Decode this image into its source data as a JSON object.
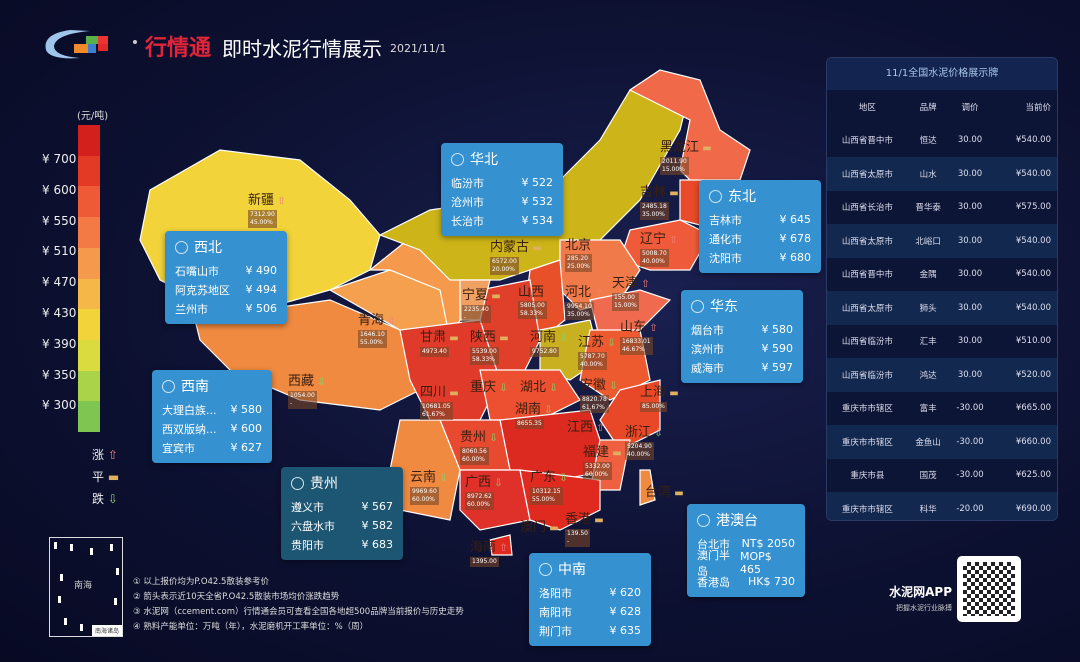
{
  "header": {
    "brand": "行情通",
    "title": "即时水泥行情展示",
    "date": "2021/11/1"
  },
  "legend": {
    "unit": "(元/吨)",
    "ticks": [
      "¥ 700",
      "¥ 600",
      "¥ 550",
      "¥ 510",
      "¥ 470",
      "¥ 430",
      "¥ 390",
      "¥ 350",
      "¥ 300"
    ],
    "colors": [
      "#d3201c",
      "#e33a26",
      "#ee5a36",
      "#f37a44",
      "#f59a4c",
      "#f5b848",
      "#f2d33a",
      "#dadb3e",
      "#aad34a",
      "#7ec651"
    ],
    "trend": {
      "up": "涨",
      "flat": "平",
      "down": "跌"
    },
    "trend_colors": {
      "up": "#f08080",
      "flat": "#e0b060",
      "down": "#8cd068"
    }
  },
  "provinces": [
    {
      "name": "新疆",
      "trend": "up",
      "value": "7312.90",
      "rate": "45.00%"
    },
    {
      "name": "青海",
      "trend": "up",
      "value": "1646.10",
      "rate": "55.00%"
    },
    {
      "name": "西藏",
      "trend": "down",
      "value": "1054.00",
      "rate": "-"
    },
    {
      "name": "甘肃",
      "trend": "flat",
      "value": "4973.40",
      "rate": ""
    },
    {
      "name": "宁夏",
      "trend": "flat",
      "value": "2235.40",
      "rate": "-"
    },
    {
      "name": "内蒙古",
      "trend": "flat",
      "value": "6572.00",
      "rate": "20.00%"
    },
    {
      "name": "黑龙江",
      "trend": "flat",
      "value": "2011.90",
      "rate": "15.00%"
    },
    {
      "name": "吉林",
      "trend": "flat",
      "value": "2485.18",
      "rate": "35.00%"
    },
    {
      "name": "辽宁",
      "trend": "up",
      "value": "5008.70",
      "rate": "40.00%"
    },
    {
      "name": "北京",
      "trend": "",
      "value": "285.20",
      "rate": "25.00%"
    },
    {
      "name": "天津",
      "trend": "up",
      "value": "155.00",
      "rate": "15.00%"
    },
    {
      "name": "河北",
      "trend": "up",
      "value": "9954.10",
      "rate": "35.00%"
    },
    {
      "name": "山西",
      "trend": "",
      "value": "5805.00",
      "rate": "58.33%"
    },
    {
      "name": "山东",
      "trend": "up",
      "value": "16833.01",
      "rate": "46.67%"
    },
    {
      "name": "陕西",
      "trend": "flat",
      "value": "5539.00",
      "rate": "58.33%"
    },
    {
      "name": "河南",
      "trend": "down",
      "value": "9752.80",
      "rate": ""
    },
    {
      "name": "江苏",
      "trend": "down",
      "value": "5787.70",
      "rate": "40.00%"
    },
    {
      "name": "上海",
      "trend": "flat",
      "value": "",
      "rate": "85.00%"
    },
    {
      "name": "四川",
      "trend": "flat",
      "value": "10681.05",
      "rate": "61.67%"
    },
    {
      "name": "重庆",
      "trend": "down",
      "value": "",
      "rate": ""
    },
    {
      "name": "湖北",
      "trend": "down",
      "value": "",
      "rate": ""
    },
    {
      "name": "安徽",
      "trend": "down",
      "value": "8820.78",
      "rate": "61.67%"
    },
    {
      "name": "浙江",
      "trend": "down",
      "value": "5204.90",
      "rate": "40.00%"
    },
    {
      "name": "贵州",
      "trend": "down",
      "value": "8060.56",
      "rate": "60.00%"
    },
    {
      "name": "湖南",
      "trend": "down",
      "value": "8655.35",
      "rate": ""
    },
    {
      "name": "江西",
      "trend": "up",
      "value": "",
      "rate": ""
    },
    {
      "name": "福建",
      "trend": "flat",
      "value": "5332.00",
      "rate": "60.00%"
    },
    {
      "name": "云南",
      "trend": "down",
      "value": "9969.60",
      "rate": "60.00%"
    },
    {
      "name": "广西",
      "trend": "down",
      "value": "8972.62",
      "rate": "60.00%"
    },
    {
      "name": "广东",
      "trend": "down",
      "value": "10312.15",
      "rate": "55.00%"
    },
    {
      "name": "海南",
      "trend": "up",
      "value": "1395.00",
      "rate": ""
    },
    {
      "name": "台湾",
      "trend": "flat",
      "value": "",
      "rate": ""
    },
    {
      "name": "澳门",
      "trend": "flat",
      "value": "",
      "rate": ""
    },
    {
      "name": "香港",
      "trend": "flat",
      "value": "139.50",
      "rate": "-"
    }
  ],
  "cards": {
    "xibei": {
      "title": "西北",
      "rows": [
        [
          "石嘴山市",
          "¥ 490"
        ],
        [
          "阿克苏地区",
          "¥ 494"
        ],
        [
          "兰州市",
          "¥ 506"
        ]
      ]
    },
    "xinan": {
      "title": "西南",
      "rows": [
        [
          "大理白族...",
          "¥ 580"
        ],
        [
          "西双版纳...",
          "¥ 600"
        ],
        [
          "宜宾市",
          "¥ 627"
        ]
      ]
    },
    "huabei": {
      "title": "华北",
      "rows": [
        [
          "临汾市",
          "¥ 522"
        ],
        [
          "沧州市",
          "¥ 532"
        ],
        [
          "长治市",
          "¥ 534"
        ]
      ]
    },
    "dongbei": {
      "title": "东北",
      "rows": [
        [
          "吉林市",
          "¥ 645"
        ],
        [
          "通化市",
          "¥ 678"
        ],
        [
          "沈阳市",
          "¥ 680"
        ]
      ]
    },
    "huadong": {
      "title": "华东",
      "rows": [
        [
          "烟台市",
          "¥ 580"
        ],
        [
          "滨州市",
          "¥ 590"
        ],
        [
          "威海市",
          "¥ 597"
        ]
      ]
    },
    "guizhou": {
      "title": "贵州",
      "rows": [
        [
          "遵义市",
          "¥ 567"
        ],
        [
          "六盘水市",
          "¥ 582"
        ],
        [
          "贵阳市",
          "¥ 683"
        ]
      ]
    },
    "zhongnan": {
      "title": "中南",
      "rows": [
        [
          "洛阳市",
          "¥ 620"
        ],
        [
          "南阳市",
          "¥ 628"
        ],
        [
          "荆门市",
          "¥ 635"
        ]
      ]
    },
    "gangaotai": {
      "title": "港澳台",
      "rows": [
        [
          "台北市",
          "NT$ 2050"
        ],
        [
          "澳门半岛",
          "MOP$ 465"
        ],
        [
          "香港岛",
          "HK$ 730"
        ]
      ]
    }
  },
  "panel": {
    "title": "11/1全国水泥价格展示牌",
    "headers": [
      "地区",
      "品牌",
      "调价",
      "当前价"
    ],
    "rows": [
      [
        "山西省晋中市",
        "恒达",
        "30.00",
        "¥540.00"
      ],
      [
        "山西省太原市",
        "山水",
        "30.00",
        "¥540.00"
      ],
      [
        "山西省长治市",
        "晋华泰",
        "30.00",
        "¥575.00"
      ],
      [
        "山西省太原市",
        "北峪口",
        "30.00",
        "¥540.00"
      ],
      [
        "山西省晋中市",
        "金隅",
        "30.00",
        "¥540.00"
      ],
      [
        "山西省太原市",
        "狮头",
        "30.00",
        "¥540.00"
      ],
      [
        "山西省临汾市",
        "汇丰",
        "30.00",
        "¥510.00"
      ],
      [
        "山西省临汾市",
        "鸿达",
        "30.00",
        "¥520.00"
      ],
      [
        "重庆市市辖区",
        "富丰",
        "-30.00",
        "¥665.00"
      ],
      [
        "重庆市市辖区",
        "金鱼山",
        "-30.00",
        "¥660.00"
      ],
      [
        "重庆市县",
        "国茂",
        "-30.00",
        "¥625.00"
      ],
      [
        "重庆市市辖区",
        "科华",
        "-20.00",
        "¥690.00"
      ]
    ]
  },
  "inset": {
    "name": "南海",
    "label": "南海诸岛"
  },
  "notes": [
    "① 以上报价均为P.O42.5散装参考价",
    "② 箭头表示近10天全省P.O42.5散装市场均价涨跌趋势",
    "③ 水泥网（ccement.com）行情通会员可查看全国各地超500品牌当前报价与历史走势",
    "④ 熟料产能单位：万吨（年），水泥磨机开工率单位：%（周）"
  ],
  "app": {
    "name": "水泥网APP",
    "slogan": "把握水泥行业脉搏"
  }
}
